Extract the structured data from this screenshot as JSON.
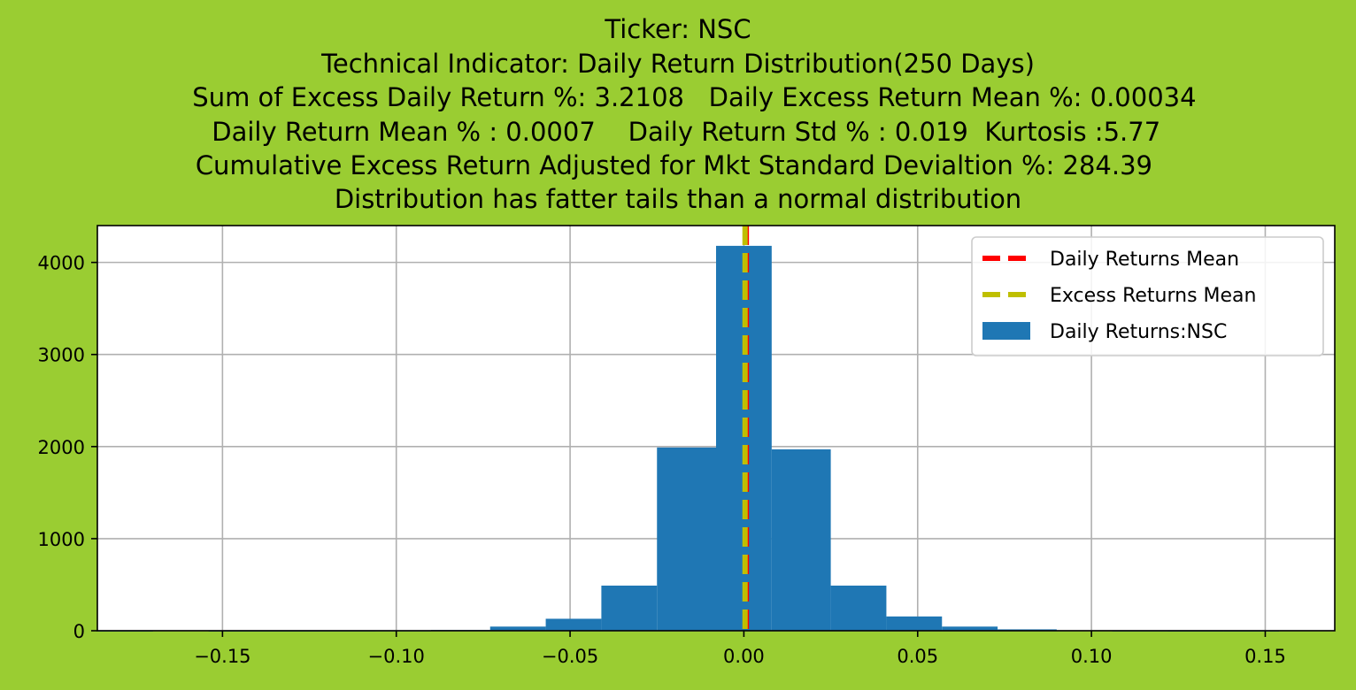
{
  "chart_data": {
    "type": "bar",
    "title_lines": [
      "Ticker: NSC",
      "Technical Indicator: Daily Return Distribution(250 Days)",
      "    Sum of Excess Daily Return %: 3.2108   Daily Excess Return Mean %: 0.00034",
      "  Daily Return Mean % : 0.0007    Daily Return Std % : 0.019  Kurtosis :5.77",
      "Cumulative Excess Return Adjusted for Mkt Standard Devialtion %: 284.39 ",
      "Distribution has fatter tails than a normal distribution"
    ],
    "xlabel": "",
    "ylabel": "",
    "xlim": [
      -0.186,
      0.17
    ],
    "ylim": [
      0,
      4400
    ],
    "grid": true,
    "x_ticks": [
      {
        "value": -0.15,
        "label": "−0.15"
      },
      {
        "value": -0.1,
        "label": "−0.10"
      },
      {
        "value": -0.05,
        "label": "−0.05"
      },
      {
        "value": 0.0,
        "label": "0.00"
      },
      {
        "value": 0.05,
        "label": "0.05"
      },
      {
        "value": 0.1,
        "label": "0.10"
      },
      {
        "value": 0.15,
        "label": "0.15"
      }
    ],
    "y_ticks": [
      {
        "value": 0,
        "label": "0"
      },
      {
        "value": 1000,
        "label": "1000"
      },
      {
        "value": 2000,
        "label": "2000"
      },
      {
        "value": 3000,
        "label": "3000"
      },
      {
        "value": 4000,
        "label": "4000"
      }
    ],
    "histogram": {
      "name": "Daily Returns:NSC",
      "color": "#1f77b4",
      "bins": [
        {
          "x0": -0.186,
          "x1": -0.17,
          "count": 1
        },
        {
          "x0": -0.17,
          "x1": -0.154,
          "count": 0
        },
        {
          "x0": -0.154,
          "x1": -0.138,
          "count": 1
        },
        {
          "x0": -0.138,
          "x1": -0.122,
          "count": 1
        },
        {
          "x0": -0.122,
          "x1": -0.106,
          "count": 2
        },
        {
          "x0": -0.106,
          "x1": -0.09,
          "count": 3
        },
        {
          "x0": -0.09,
          "x1": -0.073,
          "count": 8
        },
        {
          "x0": -0.073,
          "x1": -0.057,
          "count": 45
        },
        {
          "x0": -0.057,
          "x1": -0.041,
          "count": 130
        },
        {
          "x0": -0.041,
          "x1": -0.025,
          "count": 490
        },
        {
          "x0": -0.025,
          "x1": -0.008,
          "count": 1990
        },
        {
          "x0": -0.008,
          "x1": 0.008,
          "count": 4180
        },
        {
          "x0": 0.008,
          "x1": 0.025,
          "count": 1970
        },
        {
          "x0": 0.025,
          "x1": 0.041,
          "count": 490
        },
        {
          "x0": 0.041,
          "x1": 0.057,
          "count": 155
        },
        {
          "x0": 0.057,
          "x1": 0.073,
          "count": 45
        },
        {
          "x0": 0.073,
          "x1": 0.09,
          "count": 15
        },
        {
          "x0": 0.09,
          "x1": 0.106,
          "count": 5
        },
        {
          "x0": 0.106,
          "x1": 0.122,
          "count": 2
        },
        {
          "x0": 0.122,
          "x1": 0.138,
          "count": 1
        },
        {
          "x0": 0.138,
          "x1": 0.154,
          "count": 1
        }
      ]
    },
    "vlines": [
      {
        "name": "Daily Returns Mean",
        "x": 0.0007,
        "color": "#ff0000",
        "style": "dashed"
      },
      {
        "name": "Excess Returns Mean",
        "x": 0.00034,
        "color": "#bfbf00",
        "style": "dashed"
      }
    ],
    "legend": {
      "placement": "top-right",
      "entries": [
        {
          "label": "Daily Returns Mean",
          "color": "#ff0000",
          "kind": "dashed-line"
        },
        {
          "label": "Excess Returns Mean",
          "color": "#bfbf00",
          "kind": "dashed-line"
        },
        {
          "label": "Daily Returns:NSC",
          "color": "#1f77b4",
          "kind": "patch"
        }
      ]
    },
    "background_color": "#9acd32",
    "plot_background": "#ffffff"
  }
}
